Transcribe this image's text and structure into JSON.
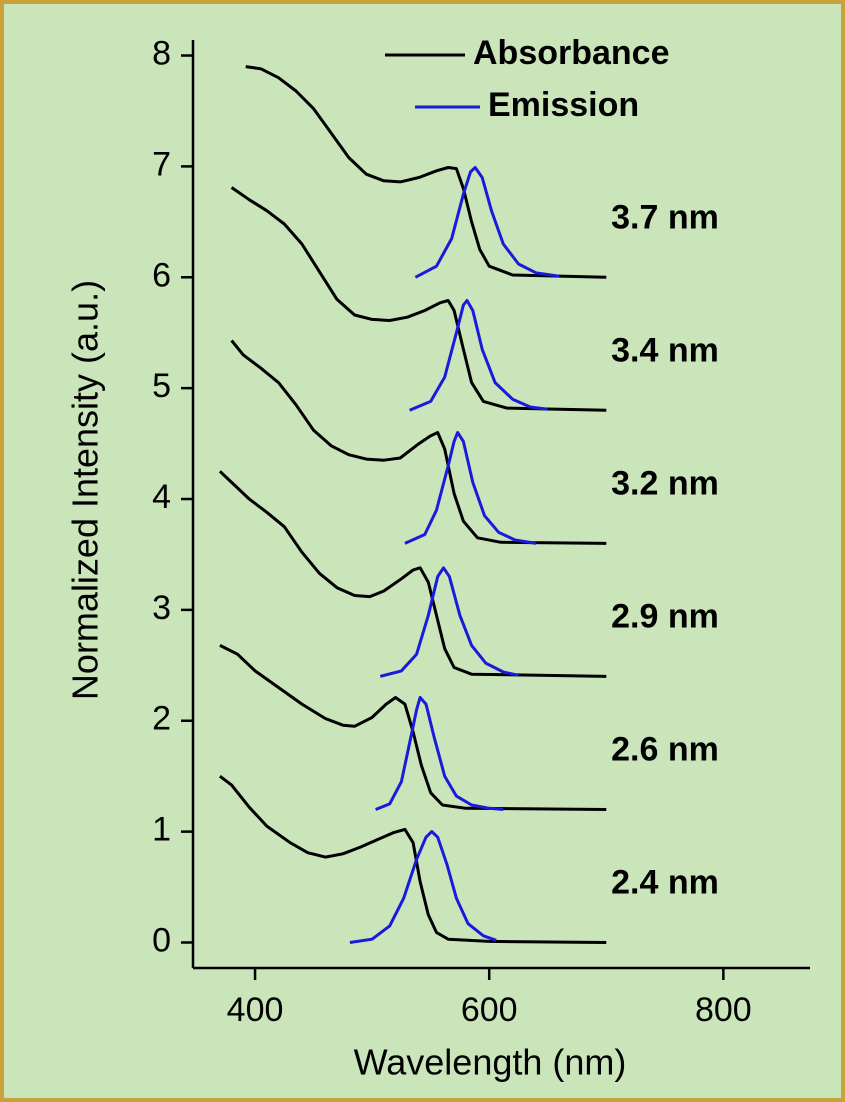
{
  "chart_data": {
    "type": "line",
    "xlabel": "Wavelength (nm)",
    "ylabel": "Normalized Intensity (a.u.)",
    "xlim": [
      347,
      874
    ],
    "ylim": [
      -0.23,
      8.14
    ],
    "xticks": [
      400,
      600,
      800
    ],
    "yticks": [
      0,
      1,
      2,
      3,
      4,
      5,
      6,
      7,
      8
    ],
    "legend_position": "top-right",
    "legend": [
      {
        "name": "Absorbance",
        "color": "#000000"
      },
      {
        "name": "Emission",
        "color": "#1a1adc"
      }
    ],
    "samples": [
      {
        "label": "2.4 nm",
        "absorbance": {
          "x": [
            370,
            380,
            395,
            410,
            430,
            445,
            460,
            475,
            490,
            505,
            518,
            528,
            535,
            541,
            548,
            555,
            565,
            600,
            700
          ],
          "y": [
            1.5,
            1.42,
            1.22,
            1.05,
            0.9,
            0.81,
            0.77,
            0.8,
            0.86,
            0.93,
            0.99,
            1.02,
            0.9,
            0.55,
            0.25,
            0.09,
            0.03,
            0.01,
            0.0
          ]
        },
        "emission": {
          "x": [
            481,
            500,
            515,
            527,
            538,
            546,
            551,
            556,
            564,
            572,
            582,
            595,
            606
          ],
          "y": [
            0,
            0.03,
            0.15,
            0.4,
            0.75,
            0.95,
            1.0,
            0.95,
            0.7,
            0.4,
            0.17,
            0.06,
            0.02
          ]
        }
      },
      {
        "label": "2.6 nm",
        "absorbance": {
          "x": [
            370,
            385,
            400,
            420,
            440,
            460,
            475,
            485,
            500,
            512,
            520,
            528,
            535,
            542,
            550,
            560,
            580,
            700
          ],
          "y": [
            2.68,
            2.6,
            2.45,
            2.3,
            2.15,
            2.02,
            1.96,
            1.95,
            2.03,
            2.15,
            2.21,
            2.15,
            1.9,
            1.6,
            1.35,
            1.24,
            1.21,
            1.2
          ]
        },
        "emission": {
          "x": [
            503,
            515,
            525,
            533,
            538,
            541,
            546,
            553,
            562,
            572,
            585,
            600,
            612
          ],
          "y": [
            1.2,
            1.25,
            1.45,
            1.85,
            2.1,
            2.21,
            2.15,
            1.85,
            1.5,
            1.32,
            1.24,
            1.21,
            1.2
          ]
        }
      },
      {
        "label": "2.9 nm",
        "absorbance": {
          "x": [
            370,
            380,
            395,
            410,
            425,
            440,
            455,
            470,
            485,
            498,
            510,
            525,
            535,
            541,
            548,
            555,
            562,
            570,
            585,
            700
          ],
          "y": [
            4.25,
            4.15,
            4.0,
            3.88,
            3.75,
            3.52,
            3.33,
            3.2,
            3.13,
            3.12,
            3.17,
            3.28,
            3.36,
            3.38,
            3.25,
            2.95,
            2.65,
            2.48,
            2.42,
            2.4
          ]
        },
        "emission": {
          "x": [
            507,
            525,
            538,
            548,
            556,
            561,
            566,
            575,
            585,
            597,
            612,
            625
          ],
          "y": [
            2.4,
            2.45,
            2.6,
            2.95,
            3.3,
            3.38,
            3.3,
            2.95,
            2.68,
            2.52,
            2.44,
            2.41
          ]
        }
      },
      {
        "label": "3.2 nm",
        "absorbance": {
          "x": [
            380,
            390,
            405,
            420,
            435,
            450,
            465,
            480,
            495,
            510,
            524,
            540,
            550,
            556,
            562,
            570,
            578,
            590,
            610,
            700
          ],
          "y": [
            5.43,
            5.3,
            5.18,
            5.05,
            4.85,
            4.62,
            4.48,
            4.4,
            4.36,
            4.35,
            4.37,
            4.5,
            4.57,
            4.6,
            4.45,
            4.05,
            3.8,
            3.65,
            3.61,
            3.6
          ]
        },
        "emission": {
          "x": [
            528,
            545,
            555,
            565,
            570,
            573,
            578,
            586,
            596,
            608,
            622,
            640
          ],
          "y": [
            3.6,
            3.68,
            3.9,
            4.3,
            4.52,
            4.6,
            4.52,
            4.15,
            3.85,
            3.7,
            3.63,
            3.6
          ]
        }
      },
      {
        "label": "3.4 nm",
        "absorbance": {
          "x": [
            380,
            395,
            410,
            425,
            440,
            455,
            470,
            485,
            500,
            515,
            530,
            545,
            558,
            565,
            570,
            578,
            585,
            595,
            615,
            700
          ],
          "y": [
            6.81,
            6.7,
            6.6,
            6.48,
            6.3,
            6.05,
            5.8,
            5.66,
            5.62,
            5.61,
            5.64,
            5.7,
            5.77,
            5.79,
            5.7,
            5.35,
            5.05,
            4.88,
            4.82,
            4.8
          ]
        },
        "emission": {
          "x": [
            532,
            550,
            562,
            572,
            578,
            581,
            586,
            594,
            605,
            620,
            635,
            650
          ],
          "y": [
            4.8,
            4.88,
            5.1,
            5.5,
            5.75,
            5.79,
            5.7,
            5.35,
            5.05,
            4.9,
            4.83,
            4.81
          ]
        }
      },
      {
        "label": "3.7 nm",
        "absorbance": {
          "x": [
            392,
            405,
            420,
            435,
            450,
            465,
            480,
            495,
            510,
            524,
            540,
            555,
            565,
            572,
            578,
            585,
            592,
            600,
            620,
            700
          ],
          "y": [
            7.9,
            7.88,
            7.8,
            7.68,
            7.52,
            7.3,
            7.08,
            6.93,
            6.87,
            6.86,
            6.9,
            6.96,
            6.99,
            6.98,
            6.8,
            6.5,
            6.25,
            6.1,
            6.02,
            6.0
          ]
        },
        "emission": {
          "x": [
            537,
            555,
            568,
            578,
            584,
            588,
            594,
            602,
            612,
            625,
            640,
            660
          ],
          "y": [
            6.0,
            6.1,
            6.35,
            6.75,
            6.95,
            6.99,
            6.9,
            6.6,
            6.3,
            6.12,
            6.04,
            6.01
          ]
        }
      }
    ]
  }
}
